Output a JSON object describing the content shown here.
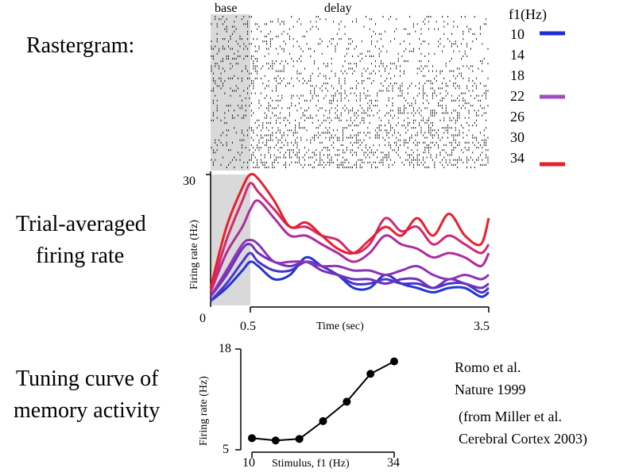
{
  "labels": {
    "rastergram": "Rastergram:",
    "avg_line1": "Trial-averaged",
    "avg_line2": "firing rate",
    "tuning_line1": "Tuning curve of",
    "tuning_line2": "memory activity",
    "base": "base",
    "delay": "delay",
    "citation_line1": "Romo et al.",
    "citation_line2": "Nature 1999",
    "citation_line3": "(from Miller et al.",
    "citation_line4": "Cerebral Cortex 2003)"
  },
  "legend": {
    "title": "f1(Hz)",
    "entries": [
      "10",
      "14",
      "18",
      "22",
      "26",
      "30",
      "34"
    ],
    "swatches": [
      {
        "label": "10",
        "color": "#1f2fd6"
      },
      {
        "label": "22",
        "color": "#a04cc0"
      },
      {
        "label": "34",
        "color": "#e5202a"
      }
    ]
  },
  "colors": {
    "f10": "#2236d6",
    "f14": "#4a35c8",
    "f18": "#6e32bc",
    "f22": "#8e32b4",
    "f26": "#b02c9c",
    "f30": "#d02a72",
    "f34": "#e8202a",
    "base_shade": "#d9d9d9"
  },
  "chart_data": [
    {
      "type": "raster",
      "title": "Rastergram",
      "period_labels": [
        "base",
        "delay"
      ],
      "base_period_sec": [
        0,
        0.5
      ],
      "xlim": [
        0,
        3.5
      ]
    },
    {
      "type": "line",
      "title": "Trial-averaged firing rate",
      "xlabel": "Time (sec)",
      "ylabel": "Firing rate (Hz)",
      "xlim": [
        0,
        3.5
      ],
      "ylim": [
        0,
        30
      ],
      "x_ticks": [
        "0.5",
        "3.5"
      ],
      "y_ticks": [
        "0",
        "30"
      ],
      "x": [
        0,
        0.2,
        0.4,
        0.5,
        0.6,
        0.8,
        1.0,
        1.2,
        1.4,
        1.6,
        1.8,
        2.0,
        2.2,
        2.4,
        2.6,
        2.8,
        3.0,
        3.2,
        3.4,
        3.5
      ],
      "series": [
        {
          "name": "10",
          "values": [
            1,
            4,
            8,
            10,
            9,
            6,
            7,
            11,
            9,
            7,
            4,
            4,
            7,
            5,
            4,
            3,
            4,
            4,
            2,
            3
          ]
        },
        {
          "name": "14",
          "values": [
            1,
            5,
            10,
            12,
            10,
            8,
            8,
            10,
            9,
            7,
            5,
            5,
            6,
            5,
            5,
            4,
            5,
            5,
            3,
            4
          ]
        },
        {
          "name": "18",
          "values": [
            2,
            7,
            13,
            14,
            12,
            10,
            9,
            10,
            8,
            7,
            6,
            6,
            5,
            6,
            6,
            4,
            6,
            5,
            4,
            5
          ]
        },
        {
          "name": "22",
          "values": [
            2,
            8,
            14,
            15,
            14,
            10,
            10,
            10,
            9,
            9,
            8,
            8,
            7,
            8,
            9,
            7,
            6,
            7,
            6,
            7
          ]
        },
        {
          "name": "26",
          "values": [
            3,
            12,
            18,
            22,
            24,
            20,
            16,
            16,
            14,
            12,
            10,
            12,
            16,
            14,
            13,
            11,
            12,
            11,
            9,
            12
          ]
        },
        {
          "name": "30",
          "values": [
            3,
            15,
            24,
            28,
            26,
            22,
            18,
            18,
            16,
            15,
            12,
            14,
            20,
            17,
            18,
            14,
            16,
            14,
            12,
            14
          ]
        },
        {
          "name": "34",
          "values": [
            4,
            18,
            27,
            30,
            29,
            24,
            18,
            19,
            16,
            13,
            12,
            15,
            18,
            16,
            20,
            16,
            21,
            16,
            14,
            20
          ]
        }
      ]
    },
    {
      "type": "line",
      "title": "Tuning curve of memory activity",
      "xlabel": "Stimulus, f1 (Hz)",
      "ylabel": "Firing rate (Hz)",
      "xlim": [
        10,
        34
      ],
      "ylim": [
        5,
        18
      ],
      "x_ticks": [
        "10",
        "34"
      ],
      "y_ticks": [
        "5",
        "18"
      ],
      "x": [
        10,
        14,
        18,
        22,
        26,
        30,
        34
      ],
      "values": [
        6.5,
        6.2,
        6.4,
        8.7,
        11.2,
        14.8,
        16.4
      ]
    }
  ]
}
